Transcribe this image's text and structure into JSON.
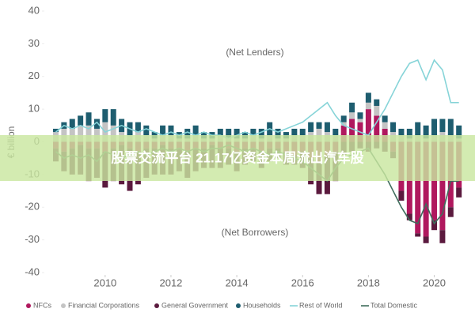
{
  "chart_data": {
    "type": "stacked-bar-line",
    "annotations": [
      "(Net Lenders)",
      "(Net Borrowers)"
    ],
    "y_label": "€ billion",
    "overlay_text": "股票交流平台 21.17亿资金本周流出汽车股",
    "xlim": [
      2008.2,
      2020.95
    ],
    "xticks": [
      2010,
      2012,
      2014,
      2016,
      2018,
      2020
    ],
    "ylim": [
      -40,
      40
    ],
    "yticks": [
      -40,
      -30,
      -20,
      -10,
      0,
      10,
      20,
      30,
      40
    ],
    "x": [
      2008.5,
      2008.75,
      2009,
      2009.25,
      2009.5,
      2009.75,
      2010,
      2010.25,
      2010.5,
      2010.75,
      2011,
      2011.25,
      2011.5,
      2011.75,
      2012,
      2012.25,
      2012.5,
      2012.75,
      2013,
      2013.25,
      2013.5,
      2013.75,
      2014,
      2014.25,
      2014.5,
      2014.75,
      2015,
      2015.25,
      2015.5,
      2015.75,
      2016,
      2016.25,
      2016.5,
      2016.75,
      2017,
      2017.25,
      2017.5,
      2017.75,
      2018,
      2018.25,
      2018.5,
      2018.75,
      2019,
      2019.25,
      2019.5,
      2019.75,
      2020,
      2020.25,
      2020.5,
      2020.75
    ],
    "series": [
      {
        "name": "NFCs",
        "kind": "bar",
        "color": "#b0185e",
        "values": [
          -2,
          -3,
          -2,
          -1,
          -2,
          -2,
          -3,
          -2,
          -1,
          -2,
          -3,
          -2,
          -2,
          -1,
          -2,
          -2,
          -3,
          -2,
          -2,
          -1,
          -2,
          -2,
          -3,
          -2,
          -2,
          -3,
          -2,
          -2,
          -3,
          -4,
          -3,
          -5,
          -6,
          -4,
          -3,
          5,
          7,
          6,
          10,
          8,
          4,
          -3,
          -15,
          -22,
          -28,
          -29,
          -24,
          -27,
          -20,
          -14
        ]
      },
      {
        "name": "Financial Corporations",
        "kind": "bar",
        "color": "#c4c4c4",
        "values": [
          3,
          4,
          4,
          5,
          5,
          4,
          6,
          5,
          3,
          2,
          3,
          2,
          1,
          2,
          2,
          1,
          1,
          2,
          1,
          1,
          2,
          1,
          1,
          1,
          2,
          1,
          2,
          1,
          1,
          2,
          2,
          3,
          4,
          3,
          2,
          1,
          2,
          1,
          2,
          3,
          2,
          3,
          2,
          1,
          2,
          1,
          2,
          3,
          2,
          1
        ]
      },
      {
        "name": "General Government",
        "kind": "bar",
        "color": "#5b1a3e",
        "values": [
          -4,
          -6,
          -8,
          -9,
          -10,
          -9,
          -11,
          -10,
          -12,
          -13,
          -10,
          -9,
          -8,
          -9,
          -8,
          -7,
          -8,
          -7,
          -6,
          -7,
          -6,
          -5,
          -6,
          -5,
          -4,
          -5,
          -4,
          -3,
          -4,
          -3,
          -5,
          -8,
          -10,
          -12,
          -9,
          -4,
          -3,
          -2,
          -3,
          -2,
          -3,
          -2,
          -3,
          -2,
          -1,
          -2,
          -3,
          -4,
          -3,
          -3
        ]
      },
      {
        "name": "Households",
        "kind": "bar",
        "color": "#1e5d6f",
        "values": [
          1,
          2,
          3,
          3,
          4,
          3,
          4,
          5,
          4,
          4,
          3,
          3,
          2,
          3,
          3,
          2,
          3,
          3,
          2,
          2,
          2,
          3,
          3,
          2,
          2,
          3,
          4,
          3,
          2,
          2,
          2,
          3,
          2,
          3,
          2,
          2,
          3,
          2,
          3,
          2,
          2,
          3,
          2,
          3,
          4,
          4,
          5,
          4,
          5,
          4
        ]
      },
      {
        "name": "Rest of World",
        "kind": "line",
        "color": "#86d4d8",
        "values": [
          3,
          5,
          4,
          5,
          4,
          6,
          3,
          4,
          5,
          4,
          3,
          4,
          3,
          2,
          3,
          2,
          3,
          2,
          3,
          2,
          2,
          1,
          2,
          3,
          2,
          3,
          4,
          3,
          4,
          5,
          6,
          8,
          10,
          12,
          8,
          5,
          4,
          3,
          2,
          6,
          10,
          15,
          20,
          24,
          25,
          19,
          25,
          22,
          12,
          12
        ]
      },
      {
        "name": "Total Domestic",
        "kind": "line",
        "color": "#3f6d5c",
        "values": [
          -3,
          -5,
          -4,
          -5,
          -4,
          -6,
          -3,
          -4,
          -5,
          -4,
          -3,
          -4,
          -3,
          -2,
          -3,
          -2,
          -3,
          -2,
          -3,
          -2,
          -2,
          -1,
          -2,
          -3,
          -2,
          -3,
          -4,
          -3,
          -4,
          -5,
          -6,
          -8,
          -10,
          -12,
          -8,
          -5,
          -4,
          -3,
          -2,
          -6,
          -10,
          -15,
          -20,
          -24,
          -25,
          -19,
          -25,
          -22,
          -12,
          -12
        ]
      }
    ]
  }
}
